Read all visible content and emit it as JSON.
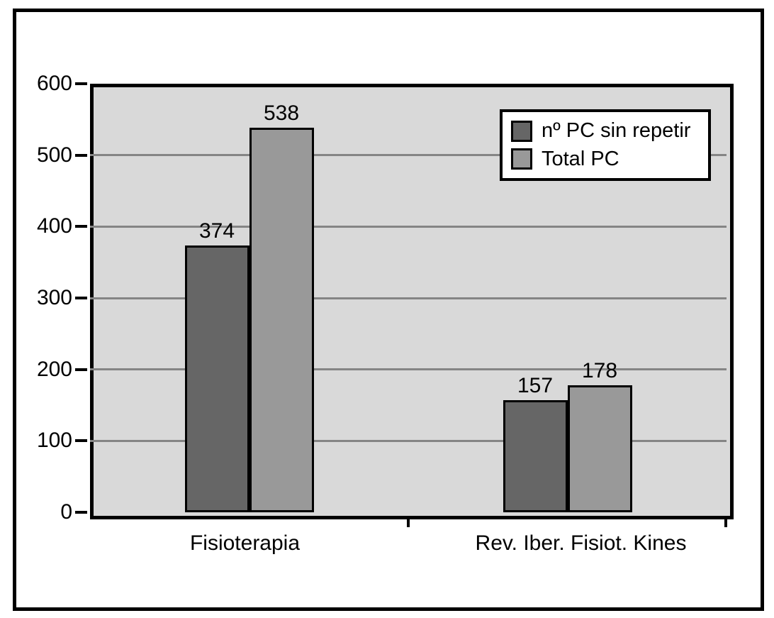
{
  "chart_data": {
    "type": "bar",
    "categories": [
      "Fisioterapia",
      "Rev. Iber. Fisiot. Kines"
    ],
    "series": [
      {
        "name": "nº PC sin repetir",
        "color": "#666666",
        "values": [
          374,
          157
        ]
      },
      {
        "name": "Total PC",
        "color": "#999999",
        "values": [
          538,
          178
        ]
      }
    ],
    "title": "",
    "xlabel": "",
    "ylabel": "",
    "ylim": [
      0,
      600
    ],
    "yticks": [
      0,
      100,
      200,
      300,
      400,
      500,
      600
    ],
    "grid": true,
    "data_labels": true,
    "legend_position": "top-right",
    "colors": {
      "plot_bg": "#d9d9d9",
      "gridline": "#858585",
      "axis": "#000000",
      "text": "#000000",
      "frame_bg": "#ffffff"
    }
  }
}
